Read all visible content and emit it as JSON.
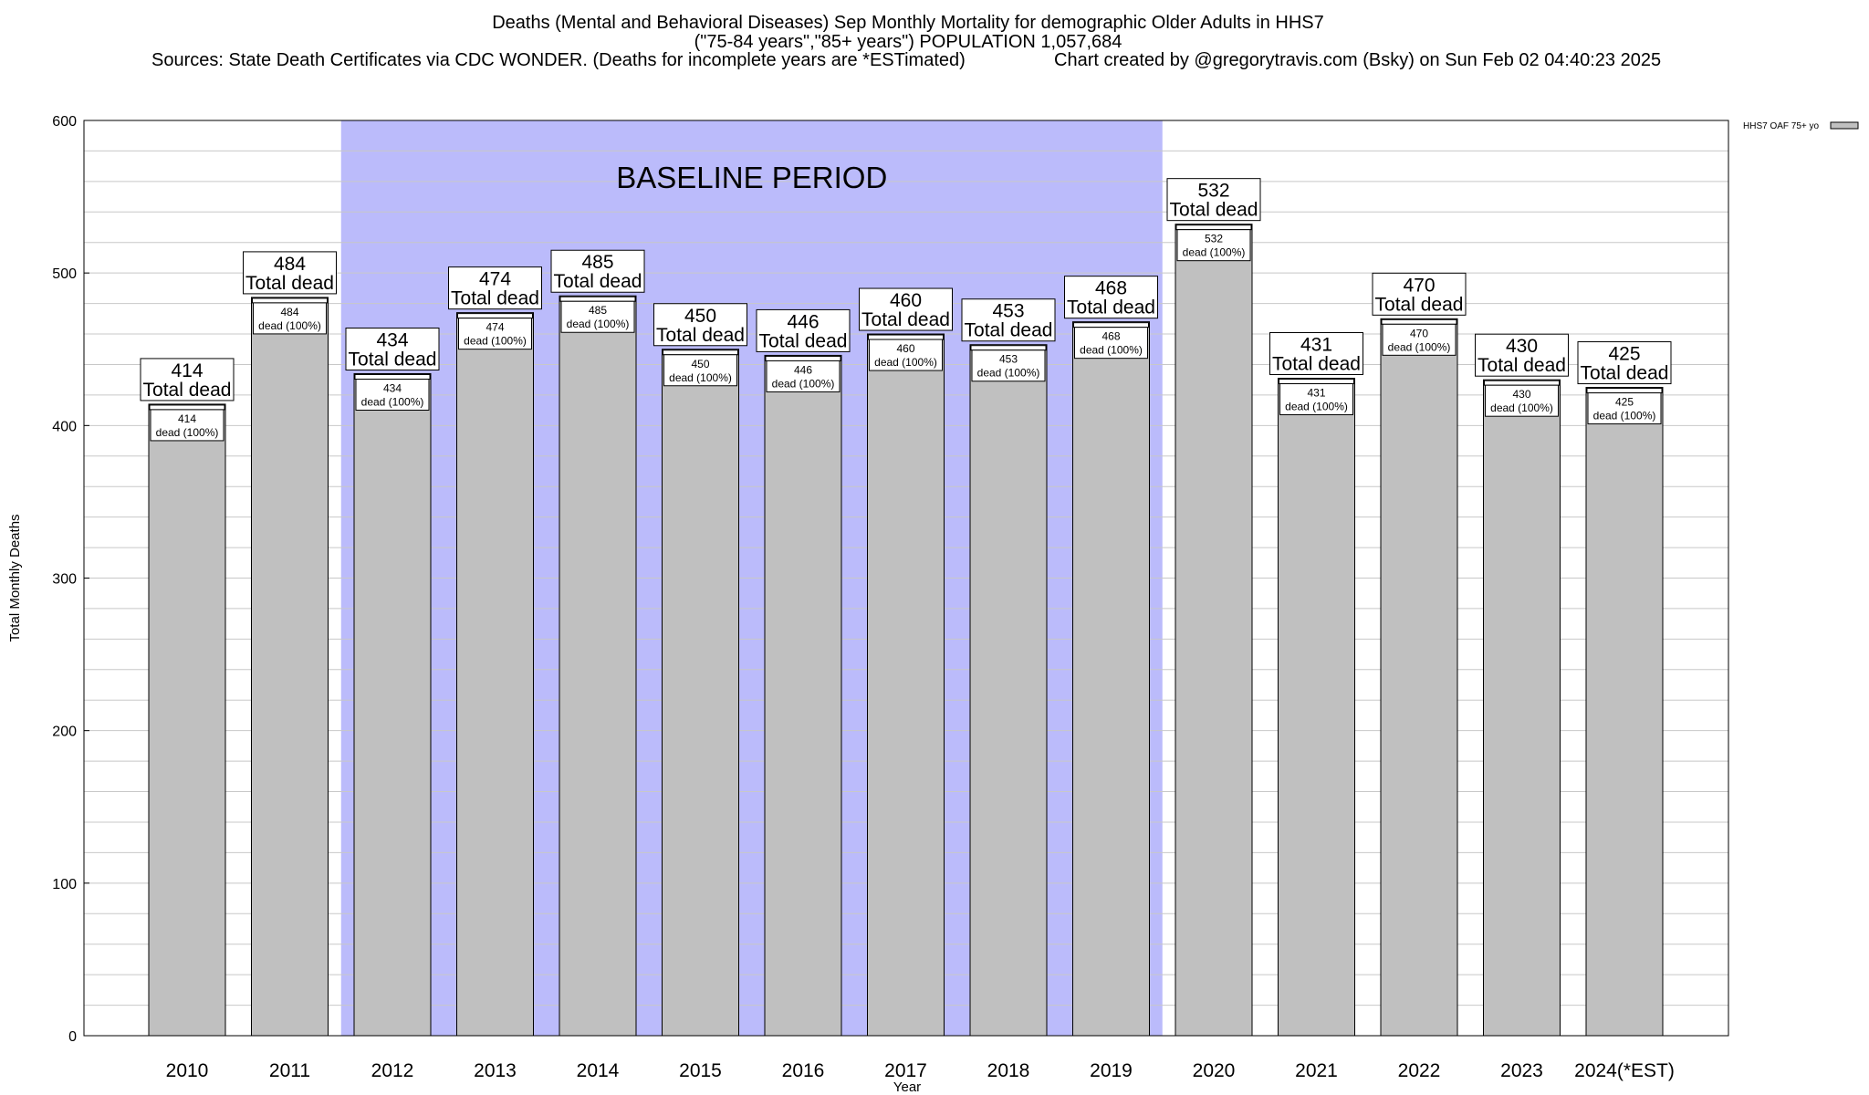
{
  "title": {
    "line1": "Deaths (Mental and Behavioral Diseases) Sep Monthly Mortality for demographic Older Adults in HHS7",
    "line2": "(\"75-84 years\",\"85+ years\") POPULATION 1,057,684",
    "line3_left": "Sources: State Death Certificates via CDC WONDER. (Deaths for incomplete years are *ESTimated)",
    "line3_right": "Chart created by @gregorytravis.com (Bsky) on Sun Feb 02 04:40:23 2025"
  },
  "legend": {
    "label": "HHS7 OAF 75+ yo"
  },
  "baseline_label": "BASELINE PERIOD",
  "colors": {
    "bar": "#c0c0c0",
    "baseline": "#bbbbfb",
    "grid": "#c8c8c8"
  },
  "chart_data": {
    "type": "bar",
    "xlabel": "Year",
    "ylabel": "Total Monthly Deaths",
    "ylim": [
      0,
      600
    ],
    "yticks": [
      0,
      100,
      200,
      300,
      400,
      500,
      600
    ],
    "grid": true,
    "legend_position": "top-right",
    "categories": [
      "2010",
      "2011",
      "2012",
      "2013",
      "2014",
      "2015",
      "2016",
      "2017",
      "2018",
      "2019",
      "2020",
      "2021",
      "2022",
      "2023",
      "2024(*EST)"
    ],
    "series": [
      {
        "name": "HHS7 OAF 75+ yo",
        "values": [
          414,
          484,
          434,
          474,
          485,
          450,
          446,
          460,
          453,
          468,
          532,
          431,
          470,
          430,
          425
        ]
      }
    ],
    "baseline_period": {
      "start": "2012",
      "end": "2019"
    },
    "total_label_suffix": "Total dead",
    "inner_label_suffix": "dead (100%)"
  }
}
